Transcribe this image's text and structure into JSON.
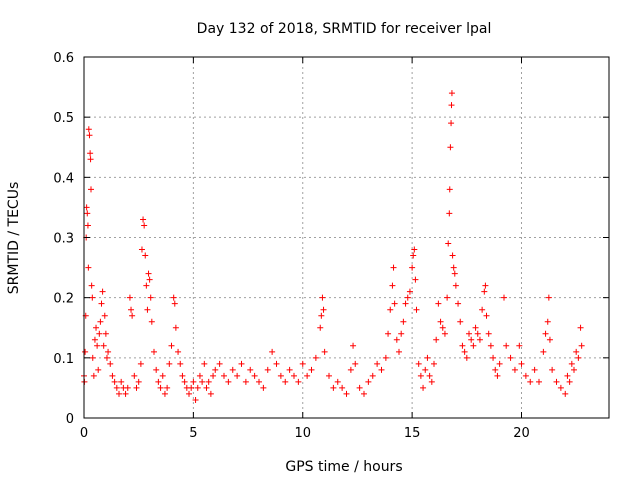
{
  "chart_data": {
    "type": "scatter",
    "title": "Day 132 of 2018, SRMTID for receiver lpal",
    "xlabel": "GPS time / hours",
    "ylabel": "SRMTID / TECUs",
    "xlim": [
      0,
      24
    ],
    "ylim": [
      0,
      0.6
    ],
    "xticks": [
      0,
      5,
      10,
      15,
      20
    ],
    "xtick_labels": [
      "0",
      "5",
      "10",
      "15",
      "20"
    ],
    "yticks": [
      0,
      0.1,
      0.2,
      0.3,
      0.4,
      0.5,
      0.6
    ],
    "ytick_labels": [
      "0",
      "0.1",
      "0.2",
      "0.3",
      "0.4",
      "0.5",
      "0.6"
    ],
    "grid": true,
    "marker": "+",
    "color": "#ff0000",
    "series": [
      {
        "name": "SRMTID",
        "points": [
          [
            0.0,
            0.07
          ],
          [
            0.02,
            0.06
          ],
          [
            0.05,
            0.11
          ],
          [
            0.08,
            0.17
          ],
          [
            0.1,
            0.3
          ],
          [
            0.12,
            0.35
          ],
          [
            0.15,
            0.34
          ],
          [
            0.18,
            0.32
          ],
          [
            0.2,
            0.25
          ],
          [
            0.22,
            0.48
          ],
          [
            0.25,
            0.47
          ],
          [
            0.28,
            0.44
          ],
          [
            0.3,
            0.43
          ],
          [
            0.32,
            0.38
          ],
          [
            0.35,
            0.22
          ],
          [
            0.38,
            0.2
          ],
          [
            0.4,
            0.1
          ],
          [
            0.45,
            0.07
          ],
          [
            0.5,
            0.13
          ],
          [
            0.55,
            0.15
          ],
          [
            0.6,
            0.12
          ],
          [
            0.65,
            0.08
          ],
          [
            0.7,
            0.14
          ],
          [
            0.75,
            0.16
          ],
          [
            0.8,
            0.19
          ],
          [
            0.85,
            0.21
          ],
          [
            0.9,
            0.12
          ],
          [
            0.95,
            0.17
          ],
          [
            1.0,
            0.14
          ],
          [
            1.05,
            0.1
          ],
          [
            1.1,
            0.11
          ],
          [
            1.2,
            0.09
          ],
          [
            1.3,
            0.07
          ],
          [
            1.4,
            0.06
          ],
          [
            1.5,
            0.05
          ],
          [
            1.6,
            0.04
          ],
          [
            1.7,
            0.06
          ],
          [
            1.8,
            0.05
          ],
          [
            1.9,
            0.04
          ],
          [
            2.0,
            0.05
          ],
          [
            2.1,
            0.2
          ],
          [
            2.15,
            0.18
          ],
          [
            2.2,
            0.17
          ],
          [
            2.3,
            0.07
          ],
          [
            2.4,
            0.05
          ],
          [
            2.5,
            0.06
          ],
          [
            2.6,
            0.09
          ],
          [
            2.65,
            0.28
          ],
          [
            2.7,
            0.33
          ],
          [
            2.75,
            0.32
          ],
          [
            2.8,
            0.27
          ],
          [
            2.85,
            0.22
          ],
          [
            2.9,
            0.18
          ],
          [
            2.95,
            0.24
          ],
          [
            3.0,
            0.23
          ],
          [
            3.05,
            0.2
          ],
          [
            3.1,
            0.16
          ],
          [
            3.2,
            0.11
          ],
          [
            3.3,
            0.08
          ],
          [
            3.4,
            0.06
          ],
          [
            3.5,
            0.05
          ],
          [
            3.6,
            0.07
          ],
          [
            3.7,
            0.04
          ],
          [
            3.8,
            0.05
          ],
          [
            3.9,
            0.09
          ],
          [
            4.0,
            0.12
          ],
          [
            4.1,
            0.2
          ],
          [
            4.15,
            0.19
          ],
          [
            4.2,
            0.15
          ],
          [
            4.3,
            0.11
          ],
          [
            4.4,
            0.09
          ],
          [
            4.5,
            0.07
          ],
          [
            4.6,
            0.06
          ],
          [
            4.7,
            0.05
          ],
          [
            4.8,
            0.04
          ],
          [
            4.9,
            0.05
          ],
          [
            5.0,
            0.06
          ],
          [
            5.1,
            0.03
          ],
          [
            5.2,
            0.05
          ],
          [
            5.3,
            0.07
          ],
          [
            5.4,
            0.06
          ],
          [
            5.5,
            0.09
          ],
          [
            5.6,
            0.05
          ],
          [
            5.7,
            0.06
          ],
          [
            5.8,
            0.04
          ],
          [
            5.9,
            0.07
          ],
          [
            6.0,
            0.08
          ],
          [
            6.2,
            0.09
          ],
          [
            6.4,
            0.07
          ],
          [
            6.6,
            0.06
          ],
          [
            6.8,
            0.08
          ],
          [
            7.0,
            0.07
          ],
          [
            7.2,
            0.09
          ],
          [
            7.4,
            0.06
          ],
          [
            7.6,
            0.08
          ],
          [
            7.8,
            0.07
          ],
          [
            8.0,
            0.06
          ],
          [
            8.2,
            0.05
          ],
          [
            8.4,
            0.08
          ],
          [
            8.6,
            0.11
          ],
          [
            8.8,
            0.09
          ],
          [
            9.0,
            0.07
          ],
          [
            9.2,
            0.06
          ],
          [
            9.4,
            0.08
          ],
          [
            9.6,
            0.07
          ],
          [
            9.8,
            0.06
          ],
          [
            10.0,
            0.09
          ],
          [
            10.2,
            0.07
          ],
          [
            10.4,
            0.08
          ],
          [
            10.6,
            0.1
          ],
          [
            10.8,
            0.15
          ],
          [
            10.85,
            0.17
          ],
          [
            10.9,
            0.2
          ],
          [
            10.95,
            0.18
          ],
          [
            11.0,
            0.11
          ],
          [
            11.2,
            0.07
          ],
          [
            11.4,
            0.05
          ],
          [
            11.6,
            0.06
          ],
          [
            11.8,
            0.05
          ],
          [
            12.0,
            0.04
          ],
          [
            12.2,
            0.08
          ],
          [
            12.3,
            0.12
          ],
          [
            12.4,
            0.09
          ],
          [
            12.6,
            0.05
          ],
          [
            12.8,
            0.04
          ],
          [
            13.0,
            0.06
          ],
          [
            13.2,
            0.07
          ],
          [
            13.4,
            0.09
          ],
          [
            13.6,
            0.08
          ],
          [
            13.8,
            0.1
          ],
          [
            13.9,
            0.14
          ],
          [
            14.0,
            0.18
          ],
          [
            14.1,
            0.22
          ],
          [
            14.15,
            0.25
          ],
          [
            14.2,
            0.19
          ],
          [
            14.3,
            0.13
          ],
          [
            14.4,
            0.11
          ],
          [
            14.5,
            0.14
          ],
          [
            14.6,
            0.16
          ],
          [
            14.7,
            0.19
          ],
          [
            14.8,
            0.2
          ],
          [
            14.9,
            0.21
          ],
          [
            15.0,
            0.25
          ],
          [
            15.05,
            0.27
          ],
          [
            15.1,
            0.28
          ],
          [
            15.15,
            0.23
          ],
          [
            15.2,
            0.18
          ],
          [
            15.3,
            0.09
          ],
          [
            15.4,
            0.07
          ],
          [
            15.5,
            0.05
          ],
          [
            15.6,
            0.08
          ],
          [
            15.7,
            0.1
          ],
          [
            15.8,
            0.07
          ],
          [
            15.9,
            0.06
          ],
          [
            16.0,
            0.09
          ],
          [
            16.1,
            0.13
          ],
          [
            16.2,
            0.19
          ],
          [
            16.3,
            0.16
          ],
          [
            16.4,
            0.15
          ],
          [
            16.5,
            0.14
          ],
          [
            16.6,
            0.2
          ],
          [
            16.65,
            0.29
          ],
          [
            16.7,
            0.34
          ],
          [
            16.72,
            0.38
          ],
          [
            16.75,
            0.45
          ],
          [
            16.78,
            0.49
          ],
          [
            16.8,
            0.52
          ],
          [
            16.82,
            0.54
          ],
          [
            16.85,
            0.27
          ],
          [
            16.9,
            0.25
          ],
          [
            16.95,
            0.24
          ],
          [
            17.0,
            0.22
          ],
          [
            17.1,
            0.19
          ],
          [
            17.2,
            0.16
          ],
          [
            17.3,
            0.12
          ],
          [
            17.4,
            0.11
          ],
          [
            17.5,
            0.1
          ],
          [
            17.6,
            0.14
          ],
          [
            17.7,
            0.13
          ],
          [
            17.8,
            0.12
          ],
          [
            17.9,
            0.15
          ],
          [
            18.0,
            0.14
          ],
          [
            18.1,
            0.13
          ],
          [
            18.2,
            0.18
          ],
          [
            18.3,
            0.21
          ],
          [
            18.35,
            0.22
          ],
          [
            18.4,
            0.17
          ],
          [
            18.5,
            0.14
          ],
          [
            18.6,
            0.12
          ],
          [
            18.7,
            0.1
          ],
          [
            18.8,
            0.08
          ],
          [
            18.9,
            0.07
          ],
          [
            19.0,
            0.09
          ],
          [
            19.2,
            0.2
          ],
          [
            19.3,
            0.12
          ],
          [
            19.5,
            0.1
          ],
          [
            19.7,
            0.08
          ],
          [
            19.9,
            0.12
          ],
          [
            20.0,
            0.09
          ],
          [
            20.2,
            0.07
          ],
          [
            20.4,
            0.06
          ],
          [
            20.6,
            0.08
          ],
          [
            20.8,
            0.06
          ],
          [
            21.0,
            0.11
          ],
          [
            21.1,
            0.14
          ],
          [
            21.2,
            0.16
          ],
          [
            21.25,
            0.2
          ],
          [
            21.3,
            0.13
          ],
          [
            21.4,
            0.08
          ],
          [
            21.6,
            0.06
          ],
          [
            21.8,
            0.05
          ],
          [
            22.0,
            0.04
          ],
          [
            22.1,
            0.07
          ],
          [
            22.2,
            0.06
          ],
          [
            22.3,
            0.09
          ],
          [
            22.4,
            0.08
          ],
          [
            22.5,
            0.11
          ],
          [
            22.6,
            0.1
          ],
          [
            22.7,
            0.15
          ],
          [
            22.75,
            0.12
          ]
        ]
      }
    ]
  }
}
